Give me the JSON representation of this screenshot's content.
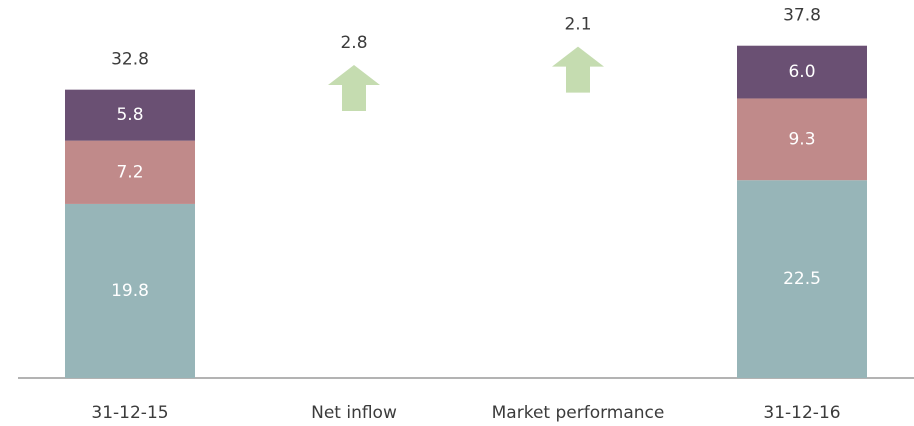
{
  "chart_data": {
    "type": "stacked-bar-bridge",
    "categories": [
      "31-12-15",
      "Net inflow",
      "Market performance",
      "31-12-16"
    ],
    "series": [
      {
        "color": "#97b5b8",
        "values": [
          19.8,
          null,
          null,
          22.5
        ]
      },
      {
        "color": "#c08a8a",
        "values": [
          7.2,
          null,
          null,
          9.3
        ]
      },
      {
        "color": "#6a5073",
        "values": [
          5.8,
          null,
          null,
          6.0
        ],
        "value_labels": [
          "5.8",
          null,
          null,
          "6.0"
        ]
      }
    ],
    "totals": [
      32.8,
      2.8,
      2.1,
      37.8
    ],
    "arrow_color": "#c5dcb0",
    "ylim": [
      0,
      43
    ]
  }
}
